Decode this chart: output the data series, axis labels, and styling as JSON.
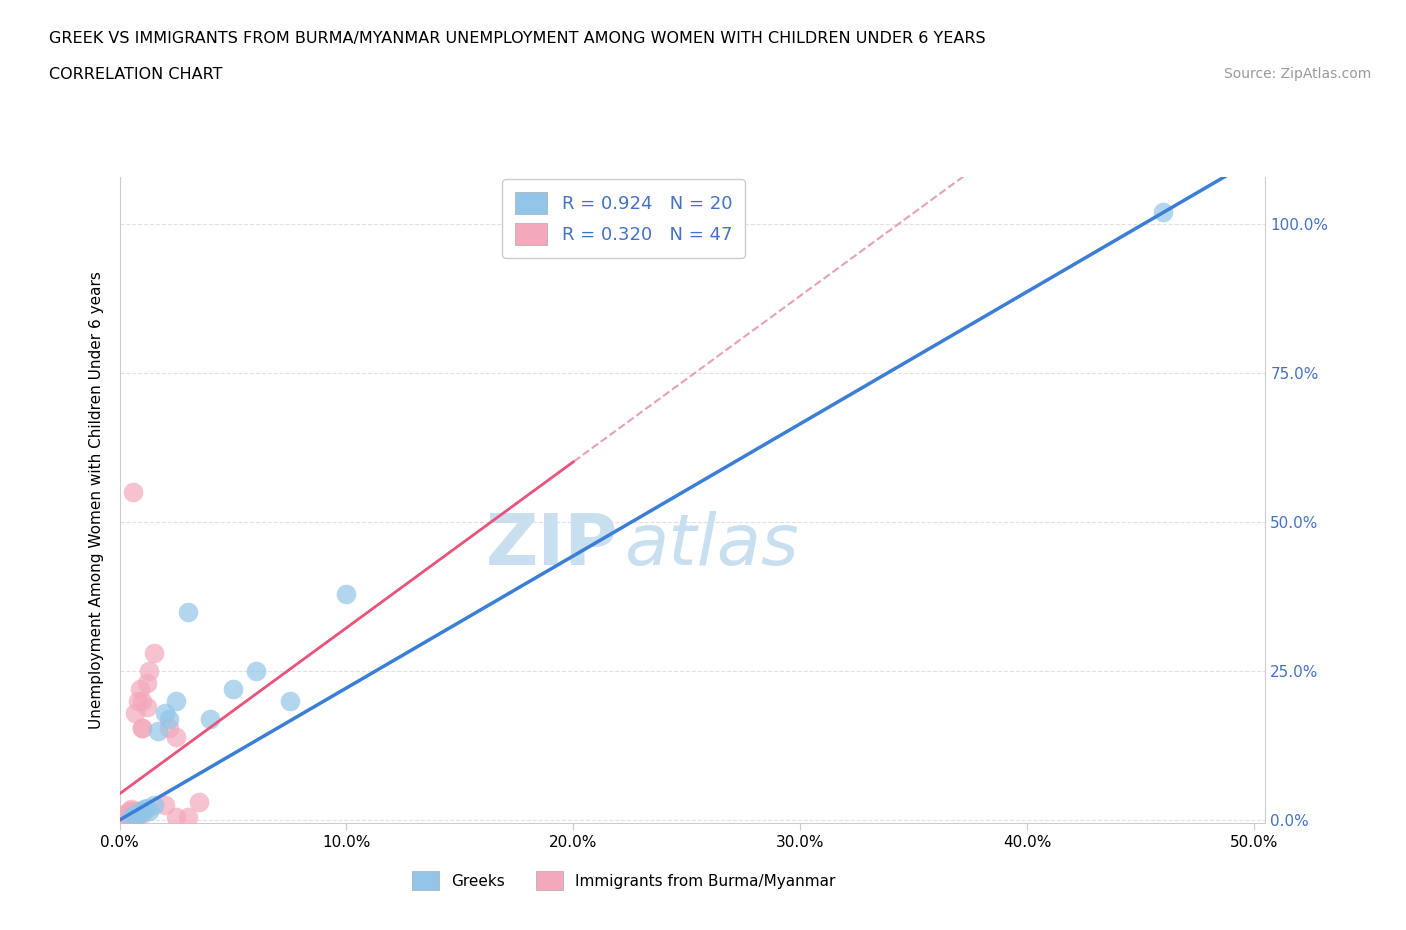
{
  "title_line1": "GREEK VS IMMIGRANTS FROM BURMA/MYANMAR UNEMPLOYMENT AMONG WOMEN WITH CHILDREN UNDER 6 YEARS",
  "title_line2": "CORRELATION CHART",
  "source": "Source: ZipAtlas.com",
  "ylabel": "Unemployment Among Women with Children Under 6 years",
  "xlim": [
    0,
    0.505
  ],
  "ylim": [
    -0.005,
    1.08
  ],
  "xticks": [
    0,
    0.1,
    0.2,
    0.3,
    0.4,
    0.5
  ],
  "yticks_right": [
    0,
    0.25,
    0.5,
    0.75,
    1.0
  ],
  "greek_color": "#92C5E8",
  "burma_color": "#F4A8BC",
  "greek_line_color": "#3A7FD5",
  "burma_line_color": "#E8557A",
  "burma_line_dashed_color": "#E8A0B8",
  "R_greek": "0.924",
  "N_greek": "20",
  "R_burma": "0.320",
  "N_burma": "47",
  "greek_x": [
    0.005,
    0.007,
    0.008,
    0.009,
    0.01,
    0.011,
    0.012,
    0.013,
    0.015,
    0.017,
    0.02,
    0.022,
    0.025,
    0.03,
    0.04,
    0.05,
    0.06,
    0.075,
    0.1,
    0.46
  ],
  "greek_y": [
    0.005,
    0.01,
    0.008,
    0.012,
    0.015,
    0.018,
    0.02,
    0.015,
    0.025,
    0.15,
    0.18,
    0.17,
    0.2,
    0.35,
    0.17,
    0.22,
    0.25,
    0.2,
    0.38,
    1.02
  ],
  "burma_x": [
    0.001,
    0.001,
    0.002,
    0.002,
    0.002,
    0.003,
    0.003,
    0.003,
    0.003,
    0.004,
    0.004,
    0.004,
    0.004,
    0.004,
    0.005,
    0.005,
    0.005,
    0.005,
    0.005,
    0.006,
    0.006,
    0.006,
    0.006,
    0.006,
    0.007,
    0.007,
    0.007,
    0.007,
    0.008,
    0.008,
    0.008,
    0.009,
    0.009,
    0.01,
    0.01,
    0.01,
    0.01,
    0.012,
    0.012,
    0.013,
    0.015,
    0.02,
    0.025,
    0.03,
    0.035,
    0.025,
    0.022
  ],
  "burma_y": [
    0.002,
    0.005,
    0.003,
    0.006,
    0.008,
    0.002,
    0.004,
    0.006,
    0.01,
    0.003,
    0.005,
    0.008,
    0.01,
    0.015,
    0.003,
    0.005,
    0.008,
    0.012,
    0.018,
    0.004,
    0.006,
    0.01,
    0.015,
    0.55,
    0.008,
    0.012,
    0.015,
    0.18,
    0.01,
    0.015,
    0.2,
    0.015,
    0.22,
    0.01,
    0.155,
    0.155,
    0.2,
    0.19,
    0.23,
    0.25,
    0.28,
    0.025,
    0.005,
    0.005,
    0.03,
    0.14,
    0.155
  ],
  "watermark_zip": "ZIP",
  "watermark_atlas": "atlas",
  "watermark_color": "#C8DFF0",
  "background_color": "#FFFFFF",
  "grid_color": "#E0E0E0",
  "label_color_blue": "#4472C4",
  "spine_color": "#CCCCCC"
}
